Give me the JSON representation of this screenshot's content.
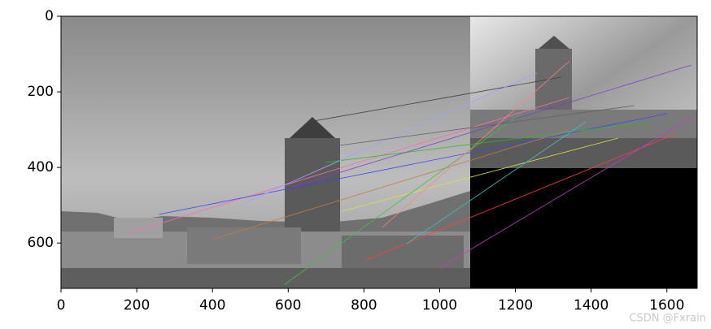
{
  "chart_data": {
    "type": "image",
    "xlim": [
      0,
      1680
    ],
    "ylim": [
      720,
      0
    ],
    "xticks": [
      0,
      200,
      400,
      600,
      800,
      1000,
      1200,
      1400,
      1600
    ],
    "yticks": [
      0,
      200,
      400,
      600
    ],
    "watermark": "CSDN @Fxrain"
  }
}
